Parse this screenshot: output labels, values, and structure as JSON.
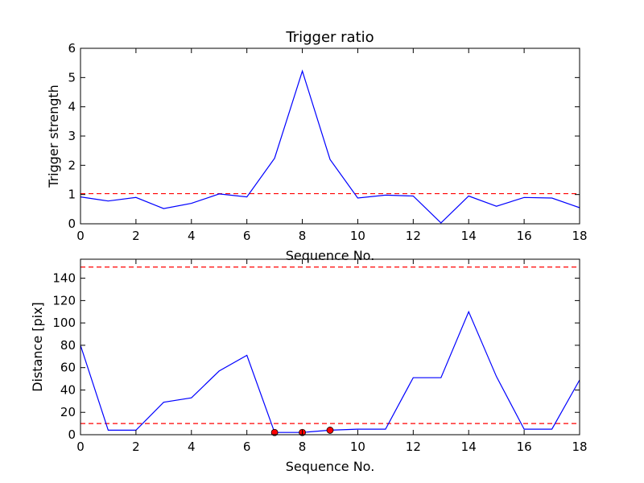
{
  "chart_data": [
    {
      "type": "line",
      "title": "Trigger ratio",
      "xlabel": "Sequence No.",
      "ylabel": "Trigger strength",
      "xlim": [
        0,
        18
      ],
      "ylim": [
        0,
        6
      ],
      "xticks": [
        0,
        2,
        4,
        6,
        8,
        10,
        12,
        14,
        16,
        18
      ],
      "yticks": [
        0,
        1,
        2,
        3,
        4,
        5,
        6
      ],
      "grid": false,
      "series": [
        {
          "color": "#0000ff",
          "x": [
            0,
            1,
            2,
            3,
            4,
            5,
            6,
            7,
            8,
            9,
            10,
            11,
            12,
            13,
            14,
            15,
            16,
            17,
            18
          ],
          "y": [
            0.92,
            0.78,
            0.9,
            0.52,
            0.7,
            1.02,
            0.92,
            2.24,
            5.22,
            2.2,
            0.88,
            0.98,
            0.95,
            0.03,
            0.95,
            0.6,
            0.9,
            0.88,
            0.55
          ]
        }
      ],
      "hlines": [
        {
          "y": 1.03,
          "color": "#ff0000",
          "style": "dashed"
        }
      ]
    },
    {
      "type": "line",
      "title": "",
      "xlabel": "Sequence No.",
      "ylabel": "Distance [pix]",
      "xlim": [
        0,
        18
      ],
      "ylim": [
        0,
        157
      ],
      "xticks": [
        0,
        2,
        4,
        6,
        8,
        10,
        12,
        14,
        16,
        18
      ],
      "yticks": [
        0,
        20,
        40,
        60,
        80,
        100,
        120,
        140
      ],
      "grid": false,
      "series": [
        {
          "color": "#0000ff",
          "x": [
            0,
            1,
            2,
            3,
            4,
            5,
            6,
            7,
            8,
            9,
            10,
            11,
            12,
            13,
            14,
            15,
            16,
            17,
            18
          ],
          "y": [
            80,
            4,
            4,
            29,
            33,
            57,
            71,
            2,
            2,
            4,
            5,
            5,
            51,
            51,
            110,
            52,
            5,
            5,
            49
          ]
        }
      ],
      "markers": [
        {
          "x": 7,
          "y": 2,
          "color": "#ff0000"
        },
        {
          "x": 8,
          "y": 2,
          "color": "#ff0000"
        },
        {
          "x": 9,
          "y": 4,
          "color": "#ff0000"
        }
      ],
      "hlines": [
        {
          "y": 150,
          "color": "#ff0000",
          "style": "dashed"
        },
        {
          "y": 10,
          "color": "#ff0000",
          "style": "dashed"
        }
      ]
    }
  ]
}
